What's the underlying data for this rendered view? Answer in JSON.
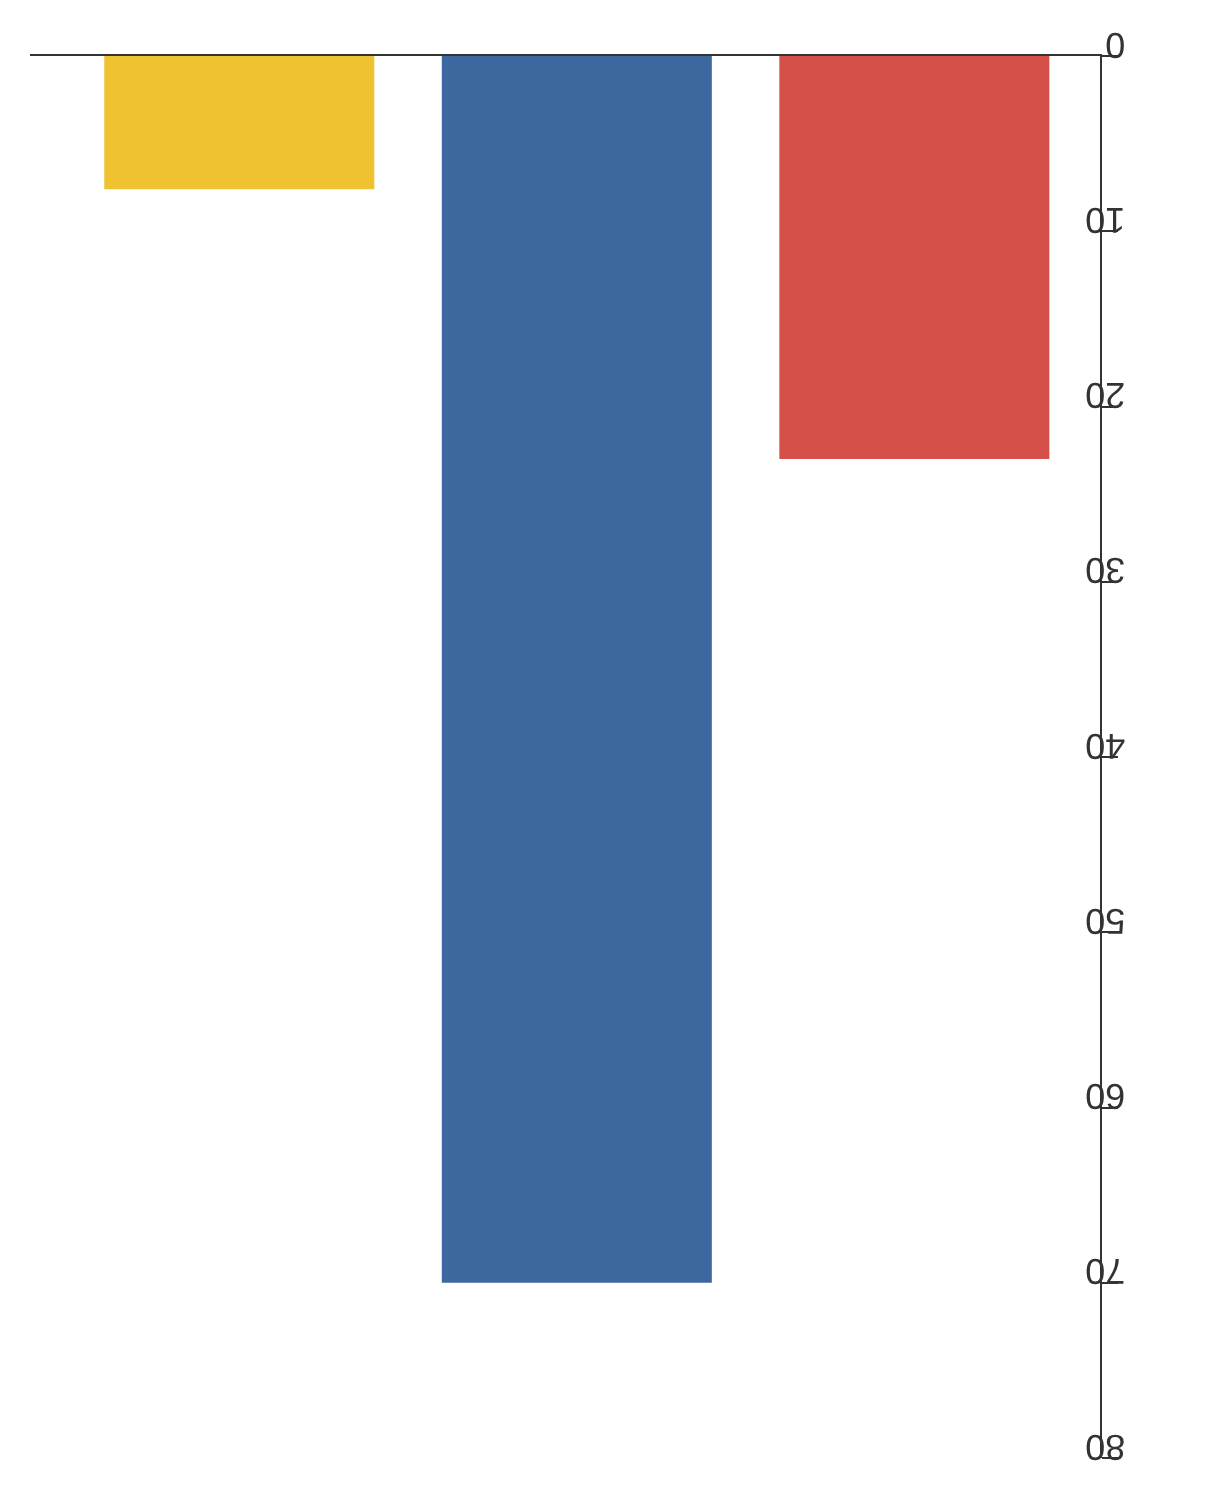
{
  "chart_data": {
    "type": "bar",
    "categories": [
      null,
      null,
      null
    ],
    "values": [
      7.6,
      70,
      23
    ],
    "colors": [
      "#efc232",
      "#3d679f",
      "#d6504a"
    ],
    "ylim": [
      80,
      0
    ],
    "yticks": [
      0,
      10,
      20,
      30,
      40,
      50,
      60,
      70,
      80
    ],
    "tick_labels": "y"
  }
}
